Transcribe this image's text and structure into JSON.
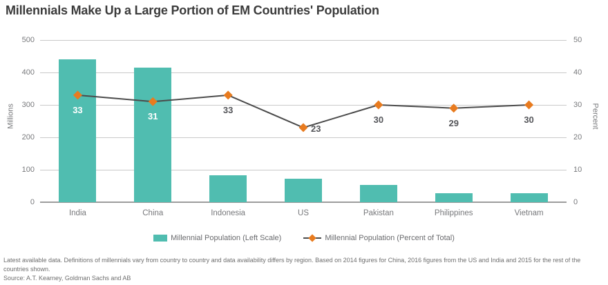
{
  "title": "Millennials Make Up a Large Portion of EM Countries' Population",
  "colors": {
    "bar_teal": "#50BDB0",
    "marker_orange": "#E87B1F",
    "line_gray": "#4a4a4a",
    "grid_gray": "#c9c9c9",
    "baseline_gray": "#9c9c9c",
    "axis_text": "#77787b",
    "value_label_dark": "#55565a",
    "value_label_light": "#ffffff",
    "title_text": "#3b3b3b",
    "footnote_text": "#6e6e6e"
  },
  "chart_data": {
    "type": "bar",
    "subtype": "bar-plus-line-combo",
    "categories": [
      "India",
      "China",
      "Indonesia",
      "US",
      "Pakistan",
      "Philippines",
      "Vietnam"
    ],
    "series": [
      {
        "name": "Millennial Population (Left Scale)",
        "type": "bar",
        "axis": "left",
        "values": [
          440,
          415,
          83,
          72,
          54,
          28,
          28
        ]
      },
      {
        "name": "Millennial Population (Percent of Total)",
        "type": "line",
        "axis": "right",
        "values": [
          33,
          31,
          33,
          23,
          30,
          29,
          30
        ],
        "data_labels": [
          "33",
          "31",
          "33",
          "23",
          "30",
          "29",
          "30"
        ]
      }
    ],
    "left_axis": {
      "title": "Millions",
      "min": 0,
      "max": 500,
      "ticks": [
        0,
        100,
        200,
        300,
        400,
        500
      ]
    },
    "right_axis": {
      "title": "Percent",
      "min": 0,
      "max": 50,
      "ticks": [
        0,
        10,
        20,
        30,
        40,
        50
      ]
    },
    "grid": true,
    "legend_position": "bottom",
    "point_label_positions": [
      "below",
      "below",
      "below",
      "right",
      "below",
      "below",
      "below"
    ]
  },
  "legend": {
    "bar_label": "Millennial Population (Left Scale)",
    "line_label": "Millennial Population (Percent of Total)"
  },
  "footnote": "Latest available data. Definitions of millennials vary from country to country and data availability differs by region. Based on 2014 figures for China, 2016 figures from the US and India and 2015 for the rest of the countries shown.",
  "source": "Source: A.T. Kearney, Goldman Sachs and AB"
}
